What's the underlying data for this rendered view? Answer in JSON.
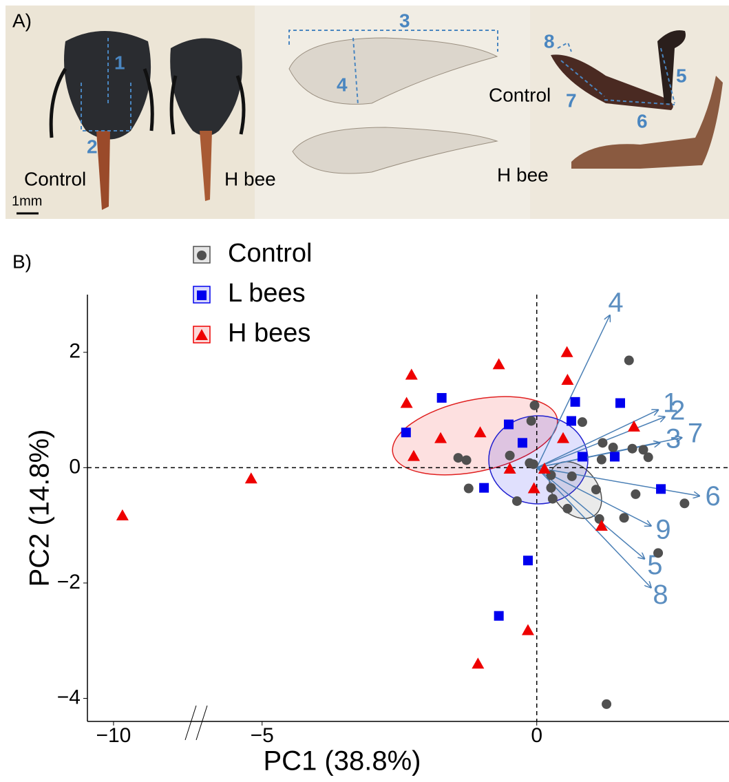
{
  "panel_a": {
    "label": "A)",
    "scale_bar": "1mm",
    "head_labels": [
      "Control",
      "H bee"
    ],
    "wing_leg_labels": [
      "Control",
      "H bee"
    ],
    "measures": [
      "1",
      "2",
      "3",
      "4",
      "5",
      "6",
      "7",
      "8"
    ]
  },
  "chart_data": {
    "type": "scatter",
    "panel_label": "B)",
    "x_label": "PC1 (38.8%)",
    "y_label": "PC2 (14.8%)",
    "xlim": [
      -11.2,
      3.5
    ],
    "ylim": [
      -4.4,
      3
    ],
    "x_break": -6.2,
    "xticks": [
      {
        "value": -10,
        "label": "−10"
      },
      {
        "value": -5,
        "label": "−5"
      },
      0
    ],
    "yticks": [
      {
        "value": -4,
        "label": "−4"
      },
      {
        "value": -2,
        "label": "−2"
      },
      0,
      2
    ],
    "zero_lines": true,
    "legend": "top-left",
    "series": [
      {
        "name": "Control",
        "color": "#505050",
        "marker": "circle",
        "x": [
          1.68,
          -0.04,
          -0.1,
          0.83,
          1.2,
          1.39,
          1.74,
          1.94,
          1.18,
          2.03,
          -1.43,
          -1.28,
          -0.49,
          -0.13,
          -0.06,
          0.26,
          0.26,
          0.64,
          1.08,
          1.8,
          2.69,
          -1.24,
          -0.36,
          0.29,
          0.56,
          1.14,
          1.59,
          2.21,
          1.27
        ],
        "values": [
          1.86,
          1.08,
          0.81,
          0.79,
          0.43,
          0.35,
          0.33,
          0.31,
          0.14,
          0.18,
          0.17,
          0.13,
          0.21,
          0.08,
          0.06,
          -0.13,
          -0.35,
          -0.15,
          -0.38,
          -0.46,
          -0.62,
          -0.36,
          -0.58,
          -0.54,
          -0.71,
          -0.89,
          -0.87,
          -1.48,
          -4.1
        ]
      },
      {
        "name": "L bees",
        "color": "#0000ee",
        "marker": "square",
        "x": [
          -1.73,
          0.7,
          1.52,
          -2.38,
          -0.51,
          0.63,
          -0.26,
          0.83,
          1.42,
          -0.96,
          2.26,
          -0.16,
          -0.69
        ],
        "values": [
          1.21,
          1.14,
          1.12,
          0.61,
          0.75,
          0.81,
          0.43,
          0.19,
          0.19,
          -0.35,
          -0.37,
          -1.61,
          -2.57
        ]
      },
      {
        "name": "H bees",
        "color": "#ee0000",
        "marker": "triangle",
        "x": [
          -9.59,
          -5.2,
          -2.28,
          -2.37,
          -2.24,
          -1.75,
          -1.03,
          -0.69,
          0.55,
          0.56,
          0.48,
          -0.49,
          -0.05,
          0.14,
          1.77,
          1.18,
          -0.16,
          -1.07
        ],
        "values": [
          -0.83,
          -0.19,
          1.61,
          1.12,
          0.2,
          0.51,
          0.61,
          1.79,
          2.0,
          1.52,
          0.51,
          -0.02,
          -0.36,
          -0.02,
          0.71,
          -1.01,
          -2.82,
          -3.4
        ]
      }
    ],
    "loadings": {
      "color": "#4a7fb5",
      "labels": [
        "4",
        "1",
        "2",
        "3",
        "7",
        "6",
        "9",
        "5",
        "8"
      ],
      "x": [
        1.33,
        2.21,
        2.33,
        2.24,
        2.64,
        2.96,
        2.08,
        1.96,
        2.08
      ],
      "values": [
        2.64,
        1.0,
        0.88,
        0.43,
        0.52,
        -0.49,
        -1.01,
        -1.58,
        -2.08
      ]
    }
  }
}
